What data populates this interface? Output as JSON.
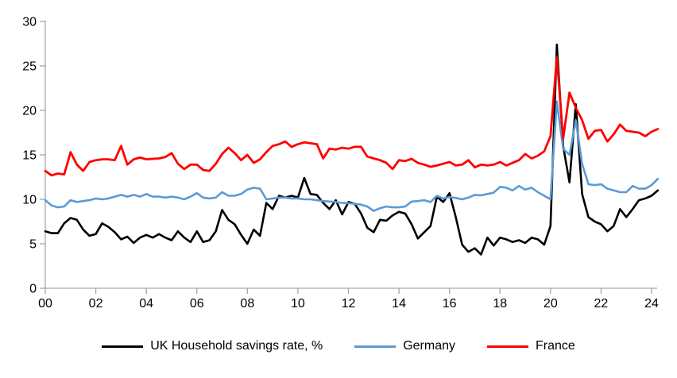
{
  "chart_data": {
    "type": "line",
    "title": "",
    "xlabel": "",
    "ylabel": "",
    "x_start": "2000Q1",
    "x_frequency": "quarterly",
    "x_tick_labels": [
      "00",
      "02",
      "04",
      "06",
      "08",
      "10",
      "12",
      "14",
      "16",
      "18",
      "20",
      "22",
      "24"
    ],
    "y_ticks": [
      0,
      5,
      10,
      15,
      20,
      25,
      30
    ],
    "ylim": [
      0,
      30
    ],
    "grid": false,
    "legend_position": "bottom",
    "axis_color": "#a6a6a6",
    "series": [
      {
        "name": "UK Household savings rate, %",
        "color": "#000000",
        "values": [
          6.4,
          6.2,
          6.2,
          7.3,
          7.9,
          7.7,
          6.6,
          5.9,
          6.1,
          7.3,
          6.9,
          6.3,
          5.5,
          5.8,
          5.1,
          5.7,
          6.0,
          5.7,
          6.1,
          5.7,
          5.4,
          6.4,
          5.7,
          5.2,
          6.4,
          5.2,
          5.4,
          6.4,
          8.8,
          7.7,
          7.2,
          6.0,
          5.0,
          6.6,
          5.9,
          9.6,
          8.9,
          10.4,
          10.2,
          10.4,
          10.2,
          12.4,
          10.6,
          10.5,
          9.6,
          8.9,
          9.9,
          8.3,
          9.7,
          9.5,
          8.4,
          6.8,
          6.3,
          7.7,
          7.6,
          8.2,
          8.6,
          8.4,
          7.2,
          5.6,
          6.3,
          7.0,
          10.3,
          9.7,
          10.7,
          8.0,
          4.9,
          4.1,
          4.5,
          3.8,
          5.7,
          4.8,
          5.7,
          5.5,
          5.2,
          5.4,
          5.1,
          5.7,
          5.5,
          4.9,
          7.0,
          27.4,
          16.0,
          11.9,
          20.7,
          10.6,
          8.0,
          7.5,
          7.2,
          6.4,
          7.0,
          8.9,
          8.0,
          8.9,
          9.9,
          10.1,
          10.4,
          11.0
        ]
      },
      {
        "name": "Germany",
        "color": "#5b9bd5",
        "values": [
          9.9,
          9.3,
          9.1,
          9.2,
          9.9,
          9.7,
          9.8,
          9.9,
          10.1,
          10.0,
          10.1,
          10.3,
          10.5,
          10.3,
          10.5,
          10.3,
          10.6,
          10.3,
          10.3,
          10.2,
          10.3,
          10.2,
          10.0,
          10.3,
          10.7,
          10.2,
          10.1,
          10.2,
          10.8,
          10.4,
          10.4,
          10.6,
          11.1,
          11.3,
          11.2,
          10.0,
          10.1,
          10.2,
          10.2,
          10.1,
          10.1,
          10.0,
          10.0,
          9.9,
          9.8,
          9.75,
          9.7,
          9.6,
          9.55,
          9.5,
          9.4,
          9.2,
          8.7,
          9.0,
          9.2,
          9.1,
          9.1,
          9.2,
          9.75,
          9.8,
          9.9,
          9.7,
          10.4,
          10.1,
          10.25,
          10.15,
          10.0,
          10.2,
          10.5,
          10.45,
          10.6,
          10.75,
          11.4,
          11.3,
          11.0,
          11.5,
          11.1,
          11.3,
          10.8,
          10.4,
          10.0,
          21.0,
          15.7,
          15.0,
          18.9,
          14.0,
          11.7,
          11.6,
          11.7,
          11.2,
          11.0,
          10.8,
          10.8,
          11.5,
          11.2,
          11.2,
          11.6,
          12.3
        ]
      },
      {
        "name": "France",
        "color": "#ff0000",
        "values": [
          13.2,
          12.7,
          12.9,
          12.8,
          15.3,
          13.9,
          13.2,
          14.2,
          14.4,
          14.5,
          14.5,
          14.4,
          16.0,
          13.9,
          14.5,
          14.7,
          14.5,
          14.55,
          14.6,
          14.75,
          15.2,
          14.0,
          13.4,
          13.9,
          13.9,
          13.3,
          13.2,
          14.0,
          15.1,
          15.8,
          15.2,
          14.4,
          15.0,
          14.1,
          14.5,
          15.3,
          16.0,
          16.2,
          16.5,
          15.9,
          16.2,
          16.4,
          16.3,
          16.2,
          14.6,
          15.7,
          15.6,
          15.8,
          15.7,
          15.9,
          15.9,
          14.8,
          14.6,
          14.4,
          14.1,
          13.4,
          14.4,
          14.3,
          14.55,
          14.1,
          13.9,
          13.65,
          13.8,
          14.0,
          14.2,
          13.8,
          13.9,
          14.4,
          13.6,
          13.9,
          13.8,
          13.9,
          14.2,
          13.8,
          14.1,
          14.4,
          15.1,
          14.6,
          14.9,
          15.4,
          17.1,
          26.0,
          16.8,
          22.0,
          20.3,
          18.9,
          16.8,
          17.7,
          17.8,
          16.5,
          17.3,
          18.4,
          17.7,
          17.6,
          17.5,
          17.1,
          17.6,
          17.9
        ]
      }
    ]
  },
  "legend": {
    "uk_label": "UK Household savings rate, %",
    "germany_label": "Germany",
    "france_label": "France"
  }
}
